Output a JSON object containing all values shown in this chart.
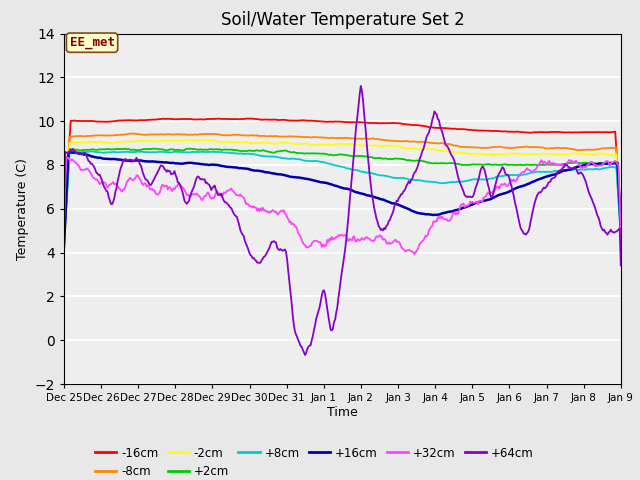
{
  "title": "Soil/Water Temperature Set 2",
  "xlabel": "Time",
  "ylabel": "Temperature (C)",
  "ylim": [
    -2,
    14
  ],
  "yticks": [
    -2,
    0,
    2,
    4,
    6,
    8,
    10,
    12,
    14
  ],
  "fig_bg_color": "#e8e8e8",
  "plot_bg_color": "#eeeeee",
  "annotation_text": "EE_met",
  "annotation_box_facecolor": "#ffffcc",
  "annotation_box_edgecolor": "#8b4513",
  "series_colors": {
    "-16cm": "#ff0000",
    "-8cm": "#ff8800",
    "-2cm": "#ffff00",
    "+2cm": "#00cc00",
    "+8cm": "#00cccc",
    "+16cm": "#0000aa",
    "+32cm": "#ff44ff",
    "+64cm": "#8800cc"
  },
  "legend_labels": [
    "-16cm",
    "-8cm",
    "-2cm",
    "+2cm",
    "+8cm",
    "+16cm",
    "+32cm",
    "+64cm"
  ],
  "tick_labels": [
    "Dec 25",
    "Dec 26",
    "Dec 27",
    "Dec 28",
    "Dec 29",
    "Dec 30",
    "Dec 31",
    "Jan 1",
    "Jan 2",
    "Jan 3",
    "Jan 4",
    "Jan 5",
    "Jan 6",
    "Jan 7",
    "Jan 8",
    "Jan 9"
  ],
  "n_points": 500
}
